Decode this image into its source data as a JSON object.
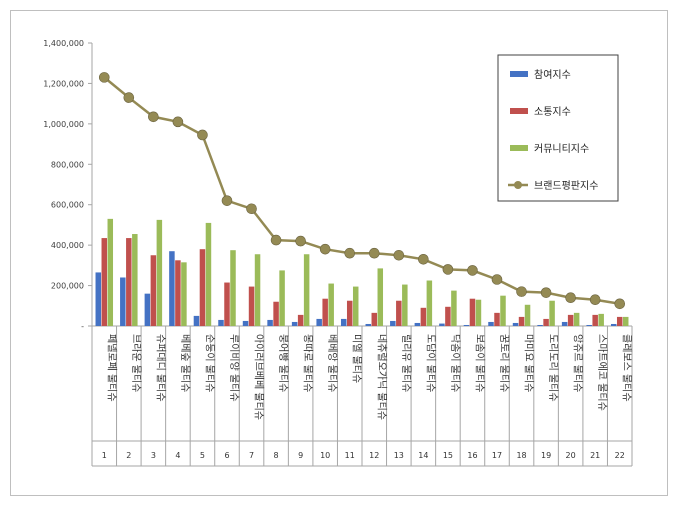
{
  "chart_data": {
    "type": "bar",
    "categories": [
      "페넬로페 물티슈",
      "브라운 물티슈",
      "슈퍼대디 물티슈",
      "베베숲 물티슈",
      "순둥이 물티슈",
      "루이비양 물티슈",
      "아이러브베베 물티슈",
      "붕어빵 물티슈",
      "몽따로 물티슈",
      "베베앙 물티슈",
      "미엘 물티슈",
      "네츄럴오가닉 물티슈",
      "릴리유 물티슈",
      "도담이 물티슈",
      "닥솜이 물티슈",
      "보솜이 물티슈",
      "꿈토리 물티슈",
      "마미요 물티슈",
      "도리도리 물티슈",
      "앙쥬르 물티슈",
      "스마트에코 물티슈",
      "클레보스 물티슈"
    ],
    "ranks": [
      "1",
      "2",
      "3",
      "4",
      "5",
      "6",
      "7",
      "8",
      "9",
      "10",
      "11",
      "12",
      "13",
      "14",
      "15",
      "16",
      "17",
      "18",
      "19",
      "20",
      "21",
      "22"
    ],
    "series": [
      {
        "name": "참여지수",
        "color": "#4472c4",
        "values": [
          265000,
          240000,
          160000,
          370000,
          50000,
          30000,
          25000,
          30000,
          20000,
          35000,
          35000,
          10000,
          25000,
          15000,
          12000,
          5000,
          20000,
          15000,
          5000,
          20000,
          5000,
          10000
        ]
      },
      {
        "name": "소통지수",
        "color": "#c0504d",
        "values": [
          435000,
          435000,
          350000,
          325000,
          380000,
          215000,
          195000,
          120000,
          55000,
          135000,
          125000,
          65000,
          125000,
          90000,
          95000,
          135000,
          65000,
          45000,
          35000,
          55000,
          55000,
          45000
        ]
      },
      {
        "name": "커뮤니티지수",
        "color": "#9bbb59",
        "values": [
          530000,
          455000,
          525000,
          315000,
          510000,
          375000,
          355000,
          275000,
          355000,
          210000,
          195000,
          285000,
          205000,
          225000,
          175000,
          130000,
          150000,
          105000,
          125000,
          65000,
          60000,
          45000
        ]
      },
      {
        "name": "브랜드평판지수",
        "type": "line",
        "color": "#948a54",
        "values": [
          1230000,
          1130000,
          1035000,
          1010000,
          945000,
          620000,
          580000,
          425000,
          420000,
          380000,
          360000,
          360000,
          350000,
          330000,
          280000,
          275000,
          230000,
          170000,
          165000,
          140000,
          130000,
          110000
        ]
      }
    ],
    "yticks": [
      "-",
      "200,000",
      "400,000",
      "600,000",
      "800,000",
      "1,000,000",
      "1,200,000",
      "1,400,000"
    ],
    "ylim": [
      0,
      1400000
    ],
    "legend_position": "right"
  }
}
